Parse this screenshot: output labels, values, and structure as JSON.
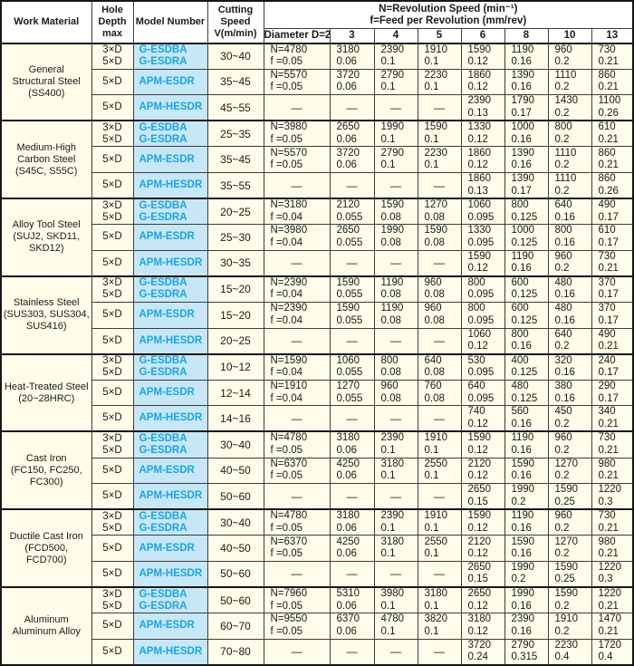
{
  "header": {
    "work_material": "Work Material",
    "hole_depth": "Hole Depth max",
    "model_number": "Model Number",
    "cutting_speed": "Cutting Speed V(m/min)",
    "n_line1": "N=Revolution Speed (min⁻¹)",
    "n_line2": "f=Feed per Revolution (mm/rev)",
    "diameter_label": "Diameter D=2",
    "diameters": [
      "3",
      "4",
      "5",
      "6",
      "8",
      "10",
      "13"
    ]
  },
  "colors": {
    "cell_bg": "#fdfde9",
    "header_bg": "#ffffff",
    "model_bg": "#c7e7f7",
    "model_text": "#1ba4e0",
    "border": "#3c3c3c"
  },
  "groups": [
    {
      "material": "General\nStructural Steel\n(SS400)",
      "rows": [
        {
          "depth": "3×D\n5×D",
          "model": "G-ESDBA\nG-ESDRA",
          "speed": "30~40",
          "cells": [
            [
              "N=4780",
              "f =0.05"
            ],
            [
              "3180",
              "0.06"
            ],
            [
              "2390",
              "0.1"
            ],
            [
              "1910",
              "0.1"
            ],
            [
              "1590",
              "0.12"
            ],
            [
              "1190",
              "0.16"
            ],
            [
              "960",
              "0.2"
            ],
            [
              "730",
              "0.21"
            ]
          ]
        },
        {
          "depth": "5×D",
          "model": "APM-ESDR",
          "speed": "35~45",
          "cells": [
            [
              "N=5570",
              "f =0.05"
            ],
            [
              "3720",
              "0.06"
            ],
            [
              "2790",
              "0.1"
            ],
            [
              "2230",
              "0.1"
            ],
            [
              "1860",
              "0.12"
            ],
            [
              "1390",
              "0.16"
            ],
            [
              "1110",
              "0.2"
            ],
            [
              "860",
              "0.21"
            ]
          ]
        },
        {
          "depth": "5×D",
          "model": "APM-HESDR",
          "speed": "45~55",
          "cells": [
            "—",
            "—",
            "—",
            "—",
            [
              "2390",
              "0.13"
            ],
            [
              "1790",
              "0.17"
            ],
            [
              "1430",
              "0.2"
            ],
            [
              "1100",
              "0.26"
            ]
          ]
        }
      ]
    },
    {
      "material": "Medium-High\nCarbon Steel\n(S45C, S55C)",
      "rows": [
        {
          "depth": "3×D\n5×D",
          "model": "G-ESDBA\nG-ESDRA",
          "speed": "25~35",
          "cells": [
            [
              "N=3980",
              "f =0.05"
            ],
            [
              "2650",
              "0.06"
            ],
            [
              "1990",
              "0.1"
            ],
            [
              "1590",
              "0.1"
            ],
            [
              "1330",
              "0.12"
            ],
            [
              "1000",
              "0.16"
            ],
            [
              "800",
              "0.2"
            ],
            [
              "610",
              "0.21"
            ]
          ]
        },
        {
          "depth": "5×D",
          "model": "APM-ESDR",
          "speed": "35~45",
          "cells": [
            [
              "N=5570",
              "f =0.05"
            ],
            [
              "3720",
              "0.06"
            ],
            [
              "2790",
              "0.1"
            ],
            [
              "2230",
              "0.1"
            ],
            [
              "1860",
              "0.12"
            ],
            [
              "1390",
              "0.16"
            ],
            [
              "1110",
              "0.2"
            ],
            [
              "860",
              "0.21"
            ]
          ]
        },
        {
          "depth": "5×D",
          "model": "APM-HESDR",
          "speed": "35~55",
          "cells": [
            "—",
            "—",
            "—",
            "—",
            [
              "1860",
              "0.13"
            ],
            [
              "1390",
              "0.17"
            ],
            [
              "1110",
              "0.2"
            ],
            [
              "860",
              "0.26"
            ]
          ]
        }
      ]
    },
    {
      "material": "Alloy Tool Steel\n(SUJ2, SKD11,\nSKD12)",
      "rows": [
        {
          "depth": "3×D\n5×D",
          "model": "G-ESDBA\nG-ESDRA",
          "speed": "20~25",
          "cells": [
            [
              "N=3180",
              "f =0.04"
            ],
            [
              "2120",
              "0.055"
            ],
            [
              "1590",
              "0.08"
            ],
            [
              "1270",
              "0.08"
            ],
            [
              "1060",
              "0.095"
            ],
            [
              "800",
              "0.125"
            ],
            [
              "640",
              "0.16"
            ],
            [
              "490",
              "0.17"
            ]
          ]
        },
        {
          "depth": "5×D",
          "model": "APM-ESDR",
          "speed": "25~30",
          "cells": [
            [
              "N=3980",
              "f =0.04"
            ],
            [
              "2650",
              "0.055"
            ],
            [
              "1990",
              "0.08"
            ],
            [
              "1590",
              "0.08"
            ],
            [
              "1330",
              "0.095"
            ],
            [
              "1000",
              "0.125"
            ],
            [
              "800",
              "0.16"
            ],
            [
              "610",
              "0.17"
            ]
          ]
        },
        {
          "depth": "5×D",
          "model": "APM-HESDR",
          "speed": "30~35",
          "cells": [
            "—",
            "—",
            "—",
            "—",
            [
              "1590",
              "0.12"
            ],
            [
              "1190",
              "0.16"
            ],
            [
              "960",
              "0.2"
            ],
            [
              "730",
              "0.21"
            ]
          ]
        }
      ]
    },
    {
      "material": "Stainless Steel\n(SUS303, SUS304,\nSUS416)",
      "rows": [
        {
          "depth": "3×D\n5×D",
          "model": "G-ESDBA\nG-ESDRA",
          "speed": "15~20",
          "cells": [
            [
              "N=2390",
              "f =0.04"
            ],
            [
              "1590",
              "0.055"
            ],
            [
              "1190",
              "0.08"
            ],
            [
              "960",
              "0.08"
            ],
            [
              "800",
              "0.095"
            ],
            [
              "600",
              "0.125"
            ],
            [
              "480",
              "0.16"
            ],
            [
              "370",
              "0.17"
            ]
          ]
        },
        {
          "depth": "5×D",
          "model": "APM-ESDR",
          "speed": "15~20",
          "cells": [
            [
              "N=2390",
              "f =0.04"
            ],
            [
              "1590",
              "0.055"
            ],
            [
              "1190",
              "0.08"
            ],
            [
              "960",
              "0.08"
            ],
            [
              "800",
              "0.095"
            ],
            [
              "600",
              "0.125"
            ],
            [
              "480",
              "0.16"
            ],
            [
              "370",
              "0.17"
            ]
          ]
        },
        {
          "depth": "5×D",
          "model": "APM-HESDR",
          "speed": "20~25",
          "cells": [
            "—",
            "—",
            "—",
            "—",
            [
              "1060",
              "0.12"
            ],
            [
              "800",
              "0.16"
            ],
            [
              "640",
              "0.2"
            ],
            [
              "490",
              "0.21"
            ]
          ]
        }
      ]
    },
    {
      "material": "Heat-Treated Steel\n(20~28HRC)",
      "rows": [
        {
          "depth": "3×D\n5×D",
          "model": "G-ESDBA\nG-ESDRA",
          "speed": "10~12",
          "cells": [
            [
              "N=1590",
              "f =0.04"
            ],
            [
              "1060",
              "0.055"
            ],
            [
              "800",
              "0.08"
            ],
            [
              "640",
              "0.08"
            ],
            [
              "530",
              "0.095"
            ],
            [
              "400",
              "0.125"
            ],
            [
              "320",
              "0.16"
            ],
            [
              "240",
              "0.17"
            ]
          ]
        },
        {
          "depth": "5×D",
          "model": "APM-ESDR",
          "speed": "12~14",
          "cells": [
            [
              "N=1910",
              "f =0.04"
            ],
            [
              "1270",
              "0.055"
            ],
            [
              "960",
              "0.08"
            ],
            [
              "760",
              "0.08"
            ],
            [
              "640",
              "0.095"
            ],
            [
              "480",
              "0.125"
            ],
            [
              "380",
              "0.16"
            ],
            [
              "290",
              "0.17"
            ]
          ]
        },
        {
          "depth": "5×D",
          "model": "APM-HESDR",
          "speed": "14~16",
          "cells": [
            "—",
            "—",
            "—",
            "—",
            [
              "740",
              "0.12"
            ],
            [
              "560",
              "0.16"
            ],
            [
              "450",
              "0.2"
            ],
            [
              "340",
              "0.21"
            ]
          ]
        }
      ]
    },
    {
      "material": "Cast Iron\n(FC150, FC250,\nFC300)",
      "rows": [
        {
          "depth": "3×D\n5×D",
          "model": "G-ESDBA\nG-ESDRA",
          "speed": "30~40",
          "cells": [
            [
              "N=4780",
              "f =0.05"
            ],
            [
              "3180",
              "0.06"
            ],
            [
              "2390",
              "0.1"
            ],
            [
              "1910",
              "0.1"
            ],
            [
              "1590",
              "0.12"
            ],
            [
              "1190",
              "0.16"
            ],
            [
              "960",
              "0.2"
            ],
            [
              "730",
              "0.21"
            ]
          ]
        },
        {
          "depth": "5×D",
          "model": "APM-ESDR",
          "speed": "40~50",
          "cells": [
            [
              "N=6370",
              "f =0.05"
            ],
            [
              "4250",
              "0.06"
            ],
            [
              "3180",
              "0.1"
            ],
            [
              "2550",
              "0.1"
            ],
            [
              "2120",
              "0.12"
            ],
            [
              "1590",
              "0.16"
            ],
            [
              "1270",
              "0.2"
            ],
            [
              "980",
              "0.21"
            ]
          ]
        },
        {
          "depth": "5×D",
          "model": "APM-HESDR",
          "speed": "50~60",
          "cells": [
            "—",
            "—",
            "—",
            "—",
            [
              "2650",
              "0.15"
            ],
            [
              "1990",
              "0.2"
            ],
            [
              "1590",
              "0.25"
            ],
            [
              "1220",
              "0.3"
            ]
          ]
        }
      ]
    },
    {
      "material": "Ductile Cast Iron\n(FCD500,\nFCD700)",
      "rows": [
        {
          "depth": "3×D\n5×D",
          "model": "G-ESDBA\nG-ESDRA",
          "speed": "30~40",
          "cells": [
            [
              "N=4780",
              "f =0.05"
            ],
            [
              "3180",
              "0.06"
            ],
            [
              "2390",
              "0.1"
            ],
            [
              "1910",
              "0.1"
            ],
            [
              "1590",
              "0.12"
            ],
            [
              "1190",
              "0.16"
            ],
            [
              "960",
              "0.2"
            ],
            [
              "730",
              "0.21"
            ]
          ]
        },
        {
          "depth": "5×D",
          "model": "APM-ESDR",
          "speed": "40~50",
          "cells": [
            [
              "N=6370",
              "f =0.05"
            ],
            [
              "4250",
              "0.06"
            ],
            [
              "3180",
              "0.1"
            ],
            [
              "2550",
              "0.1"
            ],
            [
              "2120",
              "0.12"
            ],
            [
              "1590",
              "0.16"
            ],
            [
              "1270",
              "0.2"
            ],
            [
              "980",
              "0.21"
            ]
          ]
        },
        {
          "depth": "5×D",
          "model": "APM-HESDR",
          "speed": "50~60",
          "cells": [
            "—",
            "—",
            "—",
            "—",
            [
              "2650",
              "0.15"
            ],
            [
              "1990",
              "0.2"
            ],
            [
              "1590",
              "0.25"
            ],
            [
              "1220",
              "0.3"
            ]
          ]
        }
      ]
    },
    {
      "material": "Aluminum\nAluminum Alloy",
      "rows": [
        {
          "depth": "3×D\n5×D",
          "model": "G-ESDBA\nG-ESDRA",
          "speed": "50~60",
          "cells": [
            [
              "N=7960",
              "f =0.05"
            ],
            [
              "5310",
              "0.06"
            ],
            [
              "3980",
              "0.1"
            ],
            [
              "3180",
              "0.1"
            ],
            [
              "2650",
              "0.12"
            ],
            [
              "1990",
              "0.16"
            ],
            [
              "1590",
              "0.2"
            ],
            [
              "1220",
              "0.21"
            ]
          ]
        },
        {
          "depth": "5×D",
          "model": "APM-ESDR",
          "speed": "60~70",
          "cells": [
            [
              "N=9550",
              "f =0.05"
            ],
            [
              "6370",
              "0.06"
            ],
            [
              "4780",
              "0.1"
            ],
            [
              "3820",
              "0.1"
            ],
            [
              "3180",
              "0.12"
            ],
            [
              "2390",
              "0.16"
            ],
            [
              "1910",
              "0.2"
            ],
            [
              "1470",
              "0.21"
            ]
          ]
        },
        {
          "depth": "5×D",
          "model": "APM-HESDR",
          "speed": "70~80",
          "cells": [
            "—",
            "—",
            "—",
            "—",
            [
              "3720",
              "0.24"
            ],
            [
              "2790",
              "0.315"
            ],
            [
              "2230",
              "0.4"
            ],
            [
              "1720",
              "0.4"
            ]
          ]
        }
      ]
    }
  ]
}
